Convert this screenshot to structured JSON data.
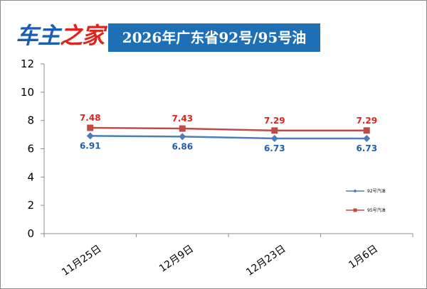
{
  "header": {
    "logo_part1": "车主",
    "logo_part2": "之家",
    "title": "2026年广东省92号/95号油"
  },
  "colors": {
    "series_92": "#4a7ebb",
    "series_95": "#be4b48",
    "label_92": "#1f5fa8",
    "label_95": "#e0241b",
    "title_bg": "#1f6fb5"
  },
  "chart_data": {
    "type": "line",
    "title": "2026年广东省92号/95号油",
    "xlabel": "",
    "ylabel": "",
    "categories": [
      "11月25日",
      "12月9日",
      "12月23日",
      "1月6日"
    ],
    "ylim": [
      0,
      12
    ],
    "yticks": [
      0,
      2,
      4,
      6,
      8,
      10,
      12
    ],
    "grid": false,
    "legend_position": "right",
    "series": [
      {
        "name": "92号汽油",
        "values": [
          6.91,
          6.86,
          6.73,
          6.73
        ],
        "marker": "diamond",
        "color": "#4a7ebb",
        "labels": [
          "6.91",
          "6.86",
          "6.73",
          "6.73"
        ]
      },
      {
        "name": "95号汽油",
        "values": [
          7.48,
          7.43,
          7.29,
          7.29
        ],
        "marker": "square",
        "color": "#be4b48",
        "labels": [
          "7.48",
          "7.43",
          "7.29",
          "7.29"
        ]
      }
    ]
  }
}
